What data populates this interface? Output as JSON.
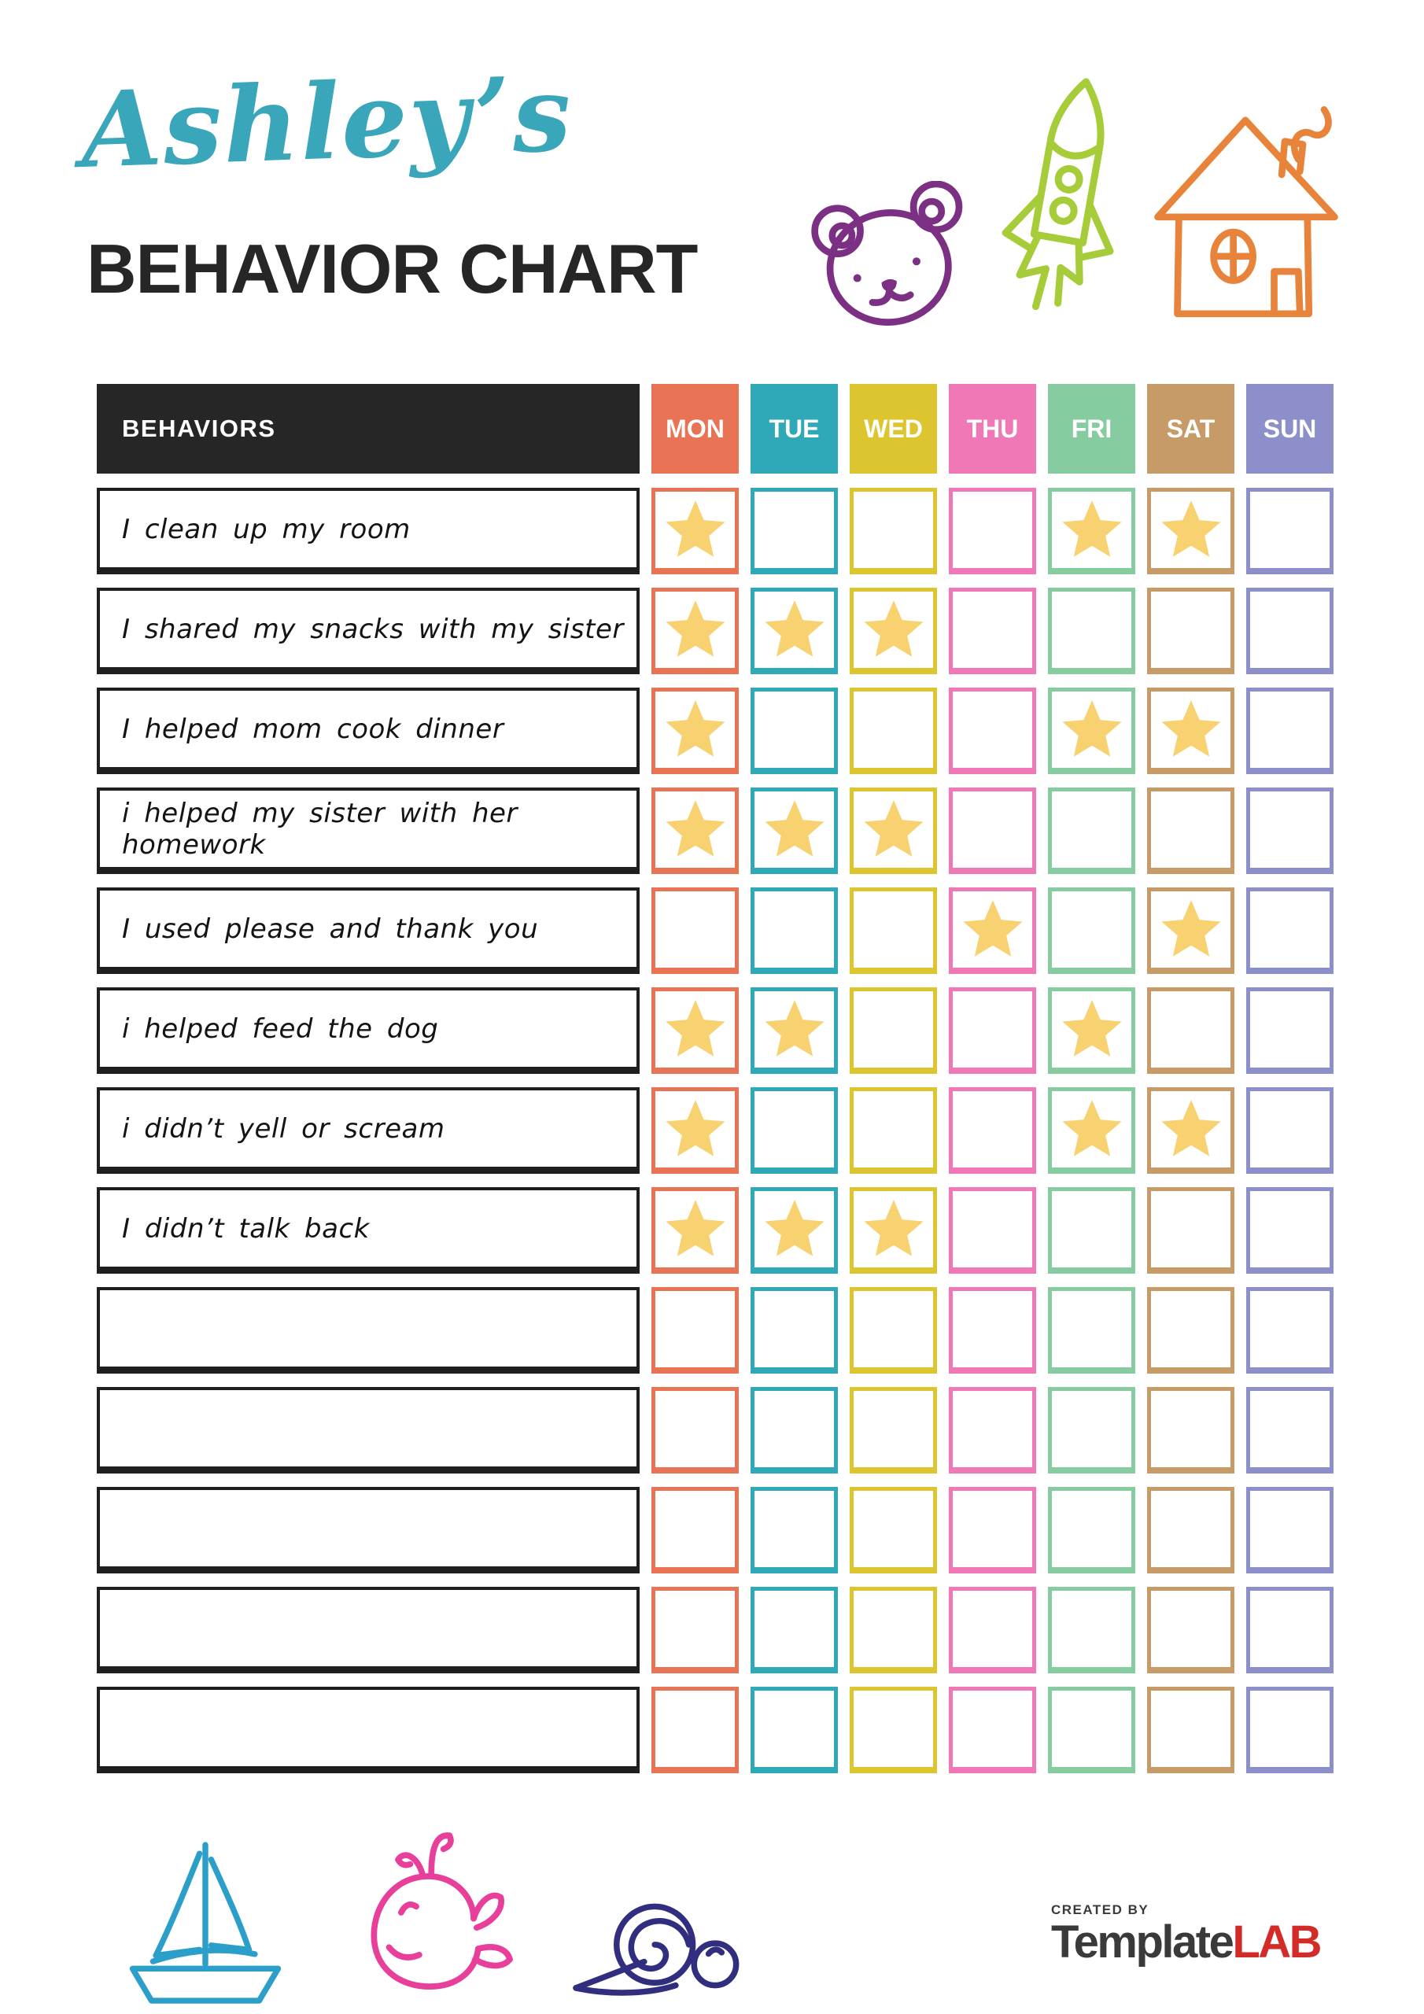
{
  "header": {
    "title": "Ashley’s",
    "title_color": "#3AA6BA",
    "subtitle": "BEHAVIOR CHART"
  },
  "table": {
    "behaviors_header": "BEHAVIORS",
    "header_bg": "#262626",
    "header_text_color": "#FFFFFF",
    "star_color": "#F8D170",
    "days": [
      {
        "label": "MON",
        "color": "#E97355"
      },
      {
        "label": "TUE",
        "color": "#2FA9B8"
      },
      {
        "label": "WED",
        "color": "#DCC52F"
      },
      {
        "label": "THU",
        "color": "#F078B6"
      },
      {
        "label": "FRI",
        "color": "#87CCA1"
      },
      {
        "label": "SAT",
        "color": "#C79B68"
      },
      {
        "label": "SUN",
        "color": "#8C8FC9"
      }
    ],
    "rows": [
      {
        "behavior": "I clean up my room",
        "stars": [
          "MON",
          "FRI",
          "SAT"
        ]
      },
      {
        "behavior": "I shared my snacks with my sister",
        "stars": [
          "MON",
          "TUE",
          "WED"
        ]
      },
      {
        "behavior": "I helped mom cook dinner",
        "stars": [
          "MON",
          "FRI",
          "SAT"
        ]
      },
      {
        "behavior": "i helped my sister with her homework",
        "stars": [
          "MON",
          "TUE",
          "WED"
        ]
      },
      {
        "behavior": "I used please and thank you",
        "stars": [
          "THU",
          "SAT"
        ]
      },
      {
        "behavior": "i helped feed the dog",
        "stars": [
          "MON",
          "TUE",
          "FRI"
        ]
      },
      {
        "behavior": "i didn’t yell or scream",
        "stars": [
          "MON",
          "FRI",
          "SAT"
        ]
      },
      {
        "behavior": "I didn’t talk back",
        "stars": [
          "MON",
          "TUE",
          "WED"
        ]
      },
      {
        "behavior": "",
        "stars": []
      },
      {
        "behavior": "",
        "stars": []
      },
      {
        "behavior": "",
        "stars": []
      },
      {
        "behavior": "",
        "stars": []
      },
      {
        "behavior": "",
        "stars": []
      }
    ]
  },
  "icons": {
    "bear": "#7B3084",
    "rocket": "#A6CC3A",
    "house": "#E8833B",
    "sailboat": "#2B9FC9",
    "whale": "#E83F9B",
    "snail": "#312E80"
  },
  "footer": {
    "logo": {
      "created_by": "CREATED BY",
      "brand_primary": "Template",
      "brand_accent": "LAB",
      "primary_color": "#3A3A3A",
      "accent_color": "#D22B28"
    }
  }
}
